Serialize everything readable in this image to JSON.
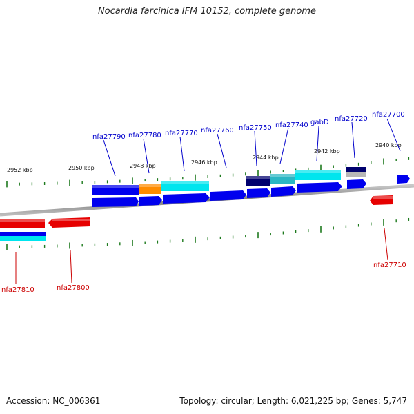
{
  "title": "Nocardia farcinica IFM 10152, complete genome",
  "footer": {
    "accession": "Accession: NC_006361",
    "topology": "Topology: circular; Length: 6,021,225 bp; Genes: 5,747"
  },
  "colors": {
    "forward_gene": "#0000ee",
    "reverse_gene": "#e60000",
    "feature_orange": "#ff8c00",
    "feature_cyan": "#00e5ee",
    "feature_teal": "#2ab7c4",
    "feature_navy": "#00006e",
    "tick": "#1e7a1e",
    "backbone": "#888888"
  },
  "axis": {
    "unit": "kbp",
    "labels": [
      "2952 kbp",
      "2950 kbp",
      "2948 kbp",
      "2946 kbp",
      "2944 kbp",
      "2942 kbp",
      "2940 kbp"
    ]
  },
  "genes_top": [
    {
      "name": "nfa27790"
    },
    {
      "name": "nfa27780"
    },
    {
      "name": "nfa27770"
    },
    {
      "name": "nfa27760"
    },
    {
      "name": "nfa27750"
    },
    {
      "name": "nfa27740"
    },
    {
      "name": "gabD"
    },
    {
      "name": "nfa27720"
    },
    {
      "name": "nfa27700"
    }
  ],
  "genes_bottom": [
    {
      "name": "nfa27810"
    },
    {
      "name": "nfa27800"
    },
    {
      "name": "nfa27710"
    }
  ]
}
